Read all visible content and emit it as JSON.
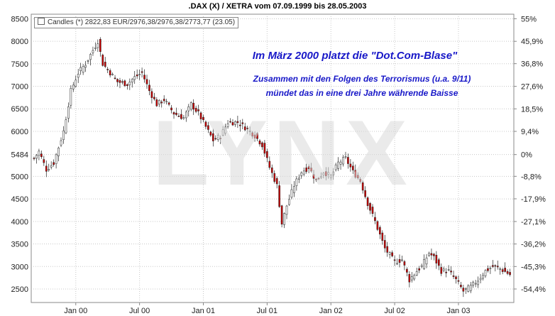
{
  "chart_data": {
    "type": "candlestick",
    "title": ".DAX (X) / XETRA vom 07.09.1999 bis 28.05.2003",
    "legend": "Candles (*) 2822,83 EUR/2976,38/2976,38/2773,77 (23.05)",
    "annotations": [
      "Im März 2000 platzt die \"Dot.Com-Blase\"",
      "Zusammen mit den Folgen des Terrorismus (u.a. 9/11)",
      "mündet das in eine drei Jahre währende Baisse"
    ],
    "watermark": "LYNX",
    "y_ticks": [
      2500,
      3000,
      3500,
      4000,
      4500,
      5000,
      5484,
      6000,
      6500,
      7000,
      7500,
      8000,
      8500
    ],
    "ylim": [
      2200,
      8600
    ],
    "pct_ticks": [
      {
        "v": 8500,
        "label": "55%"
      },
      {
        "v": 7998,
        "label": "45,9%"
      },
      {
        "v": 7502,
        "label": "36,8%"
      },
      {
        "v": 6998,
        "label": "27,6%"
      },
      {
        "v": 6499,
        "label": "18,5%"
      },
      {
        "v": 5999,
        "label": "9,4%"
      },
      {
        "v": 5484,
        "label": "0%"
      },
      {
        "v": 5001,
        "label": "-8,8%"
      },
      {
        "v": 4502,
        "label": "-17,9%"
      },
      {
        "v": 3998,
        "label": "-27,1%"
      },
      {
        "v": 3499,
        "label": "-36,2%"
      },
      {
        "v": 2999,
        "label": "-45,3%"
      },
      {
        "v": 2500,
        "label": "-54,4%"
      }
    ],
    "x_ticks": [
      "Jan 00",
      "Jul 00",
      "Jan 01",
      "Jul 01",
      "Jan 02",
      "Jul 02",
      "Jan 03"
    ],
    "x_tick_weeks": [
      17,
      43,
      69,
      95,
      121,
      147,
      173
    ],
    "n_weeks": 195,
    "anchors": [
      [
        0,
        5400
      ],
      [
        2,
        5550
      ],
      [
        5,
        5150
      ],
      [
        8,
        5300
      ],
      [
        12,
        6000
      ],
      [
        15,
        6900
      ],
      [
        18,
        7300
      ],
      [
        21,
        7500
      ],
      [
        24,
        7800
      ],
      [
        26,
        8000
      ],
      [
        28,
        7500
      ],
      [
        31,
        7300
      ],
      [
        34,
        7100
      ],
      [
        38,
        7050
      ],
      [
        41,
        7200
      ],
      [
        44,
        7300
      ],
      [
        47,
        6900
      ],
      [
        50,
        6600
      ],
      [
        53,
        6700
      ],
      [
        57,
        6400
      ],
      [
        61,
        6300
      ],
      [
        64,
        6600
      ],
      [
        67,
        6400
      ],
      [
        70,
        6100
      ],
      [
        73,
        5800
      ],
      [
        76,
        5900
      ],
      [
        79,
        6200
      ],
      [
        83,
        6200
      ],
      [
        87,
        6050
      ],
      [
        90,
        5900
      ],
      [
        93,
        5700
      ],
      [
        96,
        5200
      ],
      [
        99,
        4800
      ],
      [
        101,
        3950
      ],
      [
        103,
        4350
      ],
      [
        106,
        4800
      ],
      [
        109,
        5100
      ],
      [
        112,
        5200
      ],
      [
        115,
        4900
      ],
      [
        118,
        5100
      ],
      [
        121,
        5000
      ],
      [
        124,
        5300
      ],
      [
        127,
        5400
      ],
      [
        130,
        5100
      ],
      [
        133,
        4900
      ],
      [
        136,
        4400
      ],
      [
        139,
        4000
      ],
      [
        141,
        3700
      ],
      [
        143,
        3400
      ],
      [
        147,
        3100
      ],
      [
        150,
        3150
      ],
      [
        153,
        2700
      ],
      [
        156,
        2900
      ],
      [
        158,
        3000
      ],
      [
        161,
        3300
      ],
      [
        163,
        3200
      ],
      [
        166,
        2900
      ],
      [
        169,
        2900
      ],
      [
        172,
        2700
      ],
      [
        175,
        2450
      ],
      [
        178,
        2550
      ],
      [
        181,
        2700
      ],
      [
        184,
        2900
      ],
      [
        187,
        3000
      ],
      [
        190,
        2950
      ],
      [
        194,
        2820
      ]
    ],
    "grid": true
  }
}
